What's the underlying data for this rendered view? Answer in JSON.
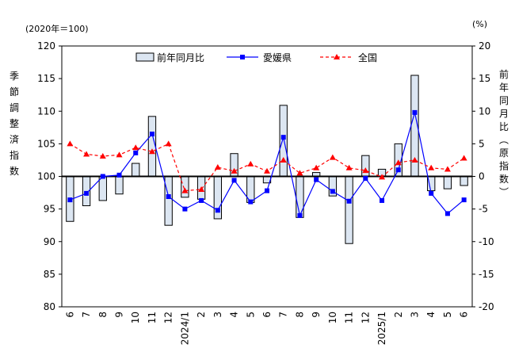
{
  "chart_data": {
    "type": "bar+line",
    "left_unit": "(2020年＝100)",
    "right_unit": "(%)",
    "left_title": [
      "季",
      "節",
      "調",
      "整",
      "済",
      "指",
      "数"
    ],
    "right_title": [
      "前",
      "年",
      "同",
      "月",
      "比",
      "︵",
      "原",
      "指",
      "数",
      "︶"
    ],
    "left_axis": {
      "min": 80,
      "max": 120,
      "step": 5,
      "reference": 100
    },
    "right_axis": {
      "min": -20,
      "max": 20,
      "step": 5
    },
    "categories": [
      "6",
      "7",
      "8",
      "9",
      "10",
      "11",
      "12",
      "2024/1",
      "2",
      "3",
      "4",
      "5",
      "6",
      "7",
      "8",
      "9",
      "10",
      "11",
      "12",
      "2025/1",
      "2",
      "3",
      "4",
      "5",
      "6"
    ],
    "series": [
      {
        "name": "前年同月比",
        "kind": "bar",
        "axis": "right",
        "color": "#dce6f2",
        "values": [
          -6.9,
          -4.5,
          -3.7,
          -2.7,
          2.0,
          9.2,
          -7.5,
          -3.2,
          -3.5,
          -6.5,
          3.5,
          -4.0,
          -1.0,
          10.9,
          -6.3,
          0.6,
          -3.0,
          -10.3,
          3.2,
          1.1,
          5.0,
          15.5,
          -2.2,
          -1.9,
          -1.4
        ]
      },
      {
        "name": "愛媛県",
        "kind": "line",
        "axis": "left",
        "color": "#0000ff",
        "marker": "square",
        "values": [
          96.4,
          97.4,
          100.0,
          100.2,
          103.6,
          106.5,
          96.9,
          95.0,
          96.3,
          94.8,
          99.4,
          96.1,
          97.8,
          106.0,
          94.0,
          99.5,
          97.7,
          96.2,
          99.7,
          96.3,
          101.0,
          109.8,
          97.4,
          94.3,
          96.4
        ]
      },
      {
        "name": "全国",
        "kind": "line",
        "axis": "left",
        "color": "#ff0000",
        "marker": "triangle",
        "dashed": true,
        "values": [
          105.0,
          103.4,
          103.1,
          103.3,
          104.4,
          103.8,
          105.0,
          97.8,
          98.0,
          101.4,
          100.8,
          101.9,
          100.8,
          102.5,
          100.5,
          101.3,
          102.9,
          101.3,
          100.9,
          99.9,
          102.1,
          102.5,
          101.3,
          101.1,
          102.8
        ]
      }
    ],
    "legend_position": "top-center",
    "grid": false
  }
}
